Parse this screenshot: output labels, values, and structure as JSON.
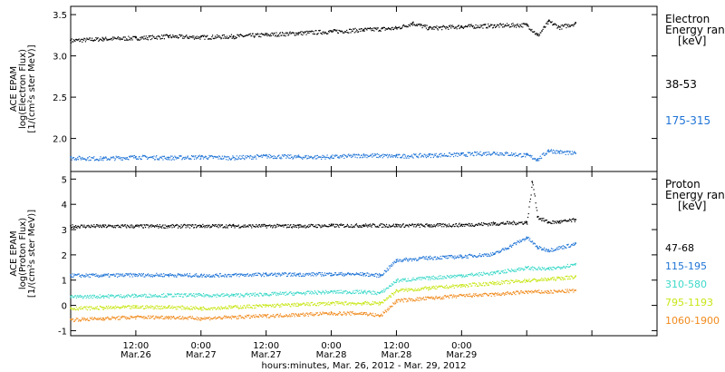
{
  "chart_data": [
    {
      "type": "scatter",
      "ylabel_lines": [
        "ACE EPAM",
        "log(Electron Flux)",
        "[1/(cm²s ster MeV)]"
      ],
      "ylim": [
        1.6,
        3.6
      ],
      "yticks": [
        2.0,
        2.5,
        3.0,
        3.5
      ],
      "ytick_labels": [
        "2.0",
        "2.5",
        "3.0",
        "3.5"
      ],
      "legend_title_lines": [
        "Electron",
        "Energy ran",
        "[keV]"
      ],
      "series": [
        {
          "name": "38-53",
          "color": "#000000",
          "x": [
            0,
            6,
            12,
            18,
            24,
            30,
            36,
            42,
            48,
            54,
            60,
            63,
            66,
            72,
            78,
            84,
            86,
            88,
            90,
            93
          ],
          "y": [
            3.19,
            3.21,
            3.22,
            3.24,
            3.23,
            3.24,
            3.26,
            3.28,
            3.3,
            3.32,
            3.34,
            3.4,
            3.34,
            3.36,
            3.37,
            3.38,
            3.25,
            3.42,
            3.35,
            3.4
          ]
        },
        {
          "name": "175-315",
          "color": "#1e73d6",
          "x": [
            0,
            6,
            12,
            18,
            24,
            30,
            36,
            42,
            48,
            54,
            60,
            66,
            72,
            78,
            84,
            86,
            88,
            90,
            93
          ],
          "y": [
            1.77,
            1.76,
            1.78,
            1.77,
            1.78,
            1.77,
            1.79,
            1.78,
            1.78,
            1.8,
            1.79,
            1.8,
            1.81,
            1.83,
            1.8,
            1.75,
            1.86,
            1.84,
            1.82
          ]
        }
      ]
    },
    {
      "type": "scatter",
      "ylabel_lines": [
        "ACE EPAM",
        "log(Proton Flux)",
        "[1/(cm²s ster MeV)]"
      ],
      "ylim": [
        -1.2,
        5.3
      ],
      "yticks": [
        -1,
        0,
        1,
        2,
        3,
        4,
        5
      ],
      "ytick_labels": [
        "-1",
        "0",
        "1",
        "2",
        "3",
        "4",
        "5"
      ],
      "legend_title_lines": [
        "Proton",
        "Energy ran",
        "[keV]"
      ],
      "series": [
        {
          "name": "47-68",
          "color": "#000000",
          "x": [
            0,
            6,
            12,
            18,
            24,
            30,
            36,
            42,
            48,
            54,
            60,
            66,
            72,
            78,
            84,
            85,
            86,
            88,
            90,
            93
          ],
          "y": [
            3.15,
            3.15,
            3.15,
            3.15,
            3.16,
            3.16,
            3.16,
            3.16,
            3.17,
            3.18,
            3.18,
            3.18,
            3.2,
            3.25,
            3.3,
            4.9,
            3.5,
            3.3,
            3.32,
            3.4
          ]
        },
        {
          "name": "115-195",
          "color": "#1e73d6",
          "x": [
            0,
            6,
            12,
            18,
            24,
            30,
            36,
            42,
            48,
            54,
            57,
            60,
            66,
            72,
            78,
            84,
            86,
            88,
            93
          ],
          "y": [
            1.2,
            1.2,
            1.22,
            1.22,
            1.2,
            1.22,
            1.24,
            1.24,
            1.26,
            1.25,
            1.2,
            1.8,
            1.9,
            1.95,
            2.05,
            2.7,
            2.3,
            2.2,
            2.45
          ]
        },
        {
          "name": "310-580",
          "color": "#3dd9c9",
          "x": [
            0,
            6,
            12,
            18,
            24,
            30,
            36,
            42,
            48,
            54,
            57,
            60,
            66,
            72,
            78,
            84,
            88,
            93
          ],
          "y": [
            0.35,
            0.38,
            0.4,
            0.42,
            0.42,
            0.42,
            0.46,
            0.5,
            0.55,
            0.55,
            0.5,
            1.0,
            1.1,
            1.2,
            1.3,
            1.5,
            1.45,
            1.65
          ]
        },
        {
          "name": "795-1193",
          "color": "#c8e615",
          "x": [
            0,
            6,
            12,
            18,
            24,
            30,
            36,
            42,
            48,
            54,
            57,
            60,
            66,
            72,
            78,
            84,
            88,
            93
          ],
          "y": [
            -0.1,
            -0.08,
            -0.05,
            -0.05,
            -0.1,
            -0.05,
            0.0,
            0.05,
            0.1,
            0.1,
            0.1,
            0.6,
            0.7,
            0.8,
            0.9,
            1.0,
            1.05,
            1.15
          ]
        },
        {
          "name": "1060-1900",
          "color": "#f08a1c",
          "x": [
            0,
            6,
            12,
            18,
            24,
            30,
            36,
            42,
            48,
            54,
            57,
            60,
            66,
            72,
            78,
            84,
            88,
            93
          ],
          "y": [
            -0.55,
            -0.5,
            -0.45,
            -0.45,
            -0.5,
            -0.45,
            -0.4,
            -0.35,
            -0.3,
            -0.3,
            -0.4,
            0.2,
            0.3,
            0.4,
            0.45,
            0.55,
            0.55,
            0.6
          ]
        }
      ]
    }
  ],
  "x_axis": {
    "xlim": [
      0,
      108
    ],
    "ticks": [
      12,
      24,
      36,
      48,
      60,
      72,
      84,
      96
    ],
    "labels": [
      [
        "12:00",
        "Mar.26"
      ],
      [
        "0:00",
        "Mar.27"
      ],
      [
        "12:00",
        "Mar.27"
      ],
      [
        "0:00",
        "Mar.28"
      ],
      [
        "12:00",
        "Mar.28"
      ],
      [
        "0:00",
        "Mar.29"
      ]
    ],
    "labeled_ticks": [
      12,
      24,
      36,
      48,
      60,
      72
    ],
    "xlabel": "hours:minutes, Mar. 26, 2012 - Mar. 29, 2012"
  }
}
